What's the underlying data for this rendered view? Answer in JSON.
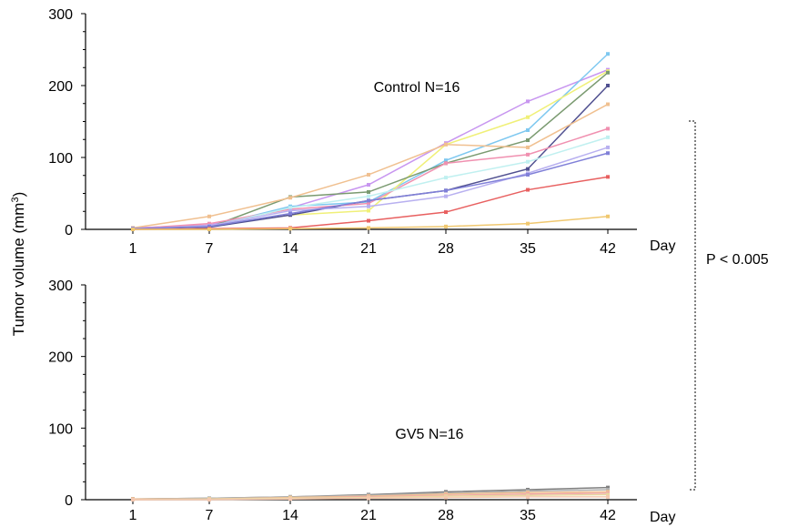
{
  "ylabel": "Tumor volume (mm",
  "ylabel_sup": "3",
  "ylabel_close": ")",
  "pvalue": "P < 0.005",
  "chart_data": [
    {
      "type": "line",
      "annotation": "Control N=16",
      "xlabel": "Day",
      "x": [
        1,
        7,
        14,
        21,
        28,
        35,
        42
      ],
      "xticks": [
        "1",
        "7",
        "14",
        "21",
        "28",
        "35",
        "42"
      ],
      "yticks": [
        "0",
        "100",
        "200",
        "300"
      ],
      "ylim": [
        0,
        300
      ],
      "series": [
        {
          "color": "#c896f0",
          "values": [
            2,
            6,
            30,
            62,
            120,
            178,
            222
          ]
        },
        {
          "color": "#7ec8f0",
          "values": [
            1,
            4,
            32,
            38,
            96,
            138,
            244
          ]
        },
        {
          "color": "#f0f078",
          "values": [
            1,
            5,
            20,
            26,
            118,
            156,
            220
          ]
        },
        {
          "color": "#7a9a70",
          "values": [
            1,
            3,
            45,
            52,
            92,
            124,
            218
          ]
        },
        {
          "color": "#505090",
          "values": [
            1,
            3,
            20,
            40,
            54,
            84,
            200
          ]
        },
        {
          "color": "#f0c090",
          "values": [
            2,
            18,
            44,
            76,
            118,
            114,
            174
          ]
        },
        {
          "color": "#f090b0",
          "values": [
            1,
            8,
            28,
            36,
            92,
            104,
            140
          ]
        },
        {
          "color": "#c0f0f0",
          "values": [
            1,
            4,
            30,
            46,
            72,
            94,
            128
          ]
        },
        {
          "color": "#b8b0f0",
          "values": [
            1,
            5,
            26,
            32,
            46,
            78,
            114
          ]
        },
        {
          "color": "#8080d8",
          "values": [
            1,
            4,
            22,
            40,
            54,
            76,
            106
          ]
        },
        {
          "color": "#e86060",
          "values": [
            0,
            1,
            2,
            12,
            24,
            55,
            73
          ]
        },
        {
          "color": "#f0c870",
          "values": [
            0,
            0,
            1,
            2,
            4,
            8,
            18
          ]
        }
      ]
    },
    {
      "type": "line",
      "annotation": "GV5 N=16",
      "xlabel": "Day",
      "x": [
        1,
        7,
        14,
        21,
        28,
        35,
        42
      ],
      "xticks": [
        "1",
        "7",
        "14",
        "21",
        "28",
        "35",
        "42"
      ],
      "yticks": [
        "0",
        "100",
        "200",
        "300"
      ],
      "ylim": [
        0,
        300
      ],
      "series": [
        {
          "color": "#808080",
          "values": [
            1,
            2,
            4,
            7,
            11,
            14,
            17
          ]
        },
        {
          "color": "#b0b0b0",
          "values": [
            1,
            2,
            4,
            6,
            9,
            12,
            14
          ]
        },
        {
          "color": "#f0c090",
          "values": [
            1,
            1,
            3,
            5,
            8,
            10,
            11
          ]
        },
        {
          "color": "#f0a8a8",
          "values": [
            0,
            1,
            2,
            4,
            6,
            8,
            9
          ]
        },
        {
          "color": "#e8d8a0",
          "values": [
            0,
            1,
            2,
            3,
            5,
            6,
            7
          ]
        },
        {
          "color": "#f4c8b0",
          "values": [
            0,
            0,
            1,
            2,
            3,
            4,
            4
          ]
        }
      ]
    }
  ]
}
